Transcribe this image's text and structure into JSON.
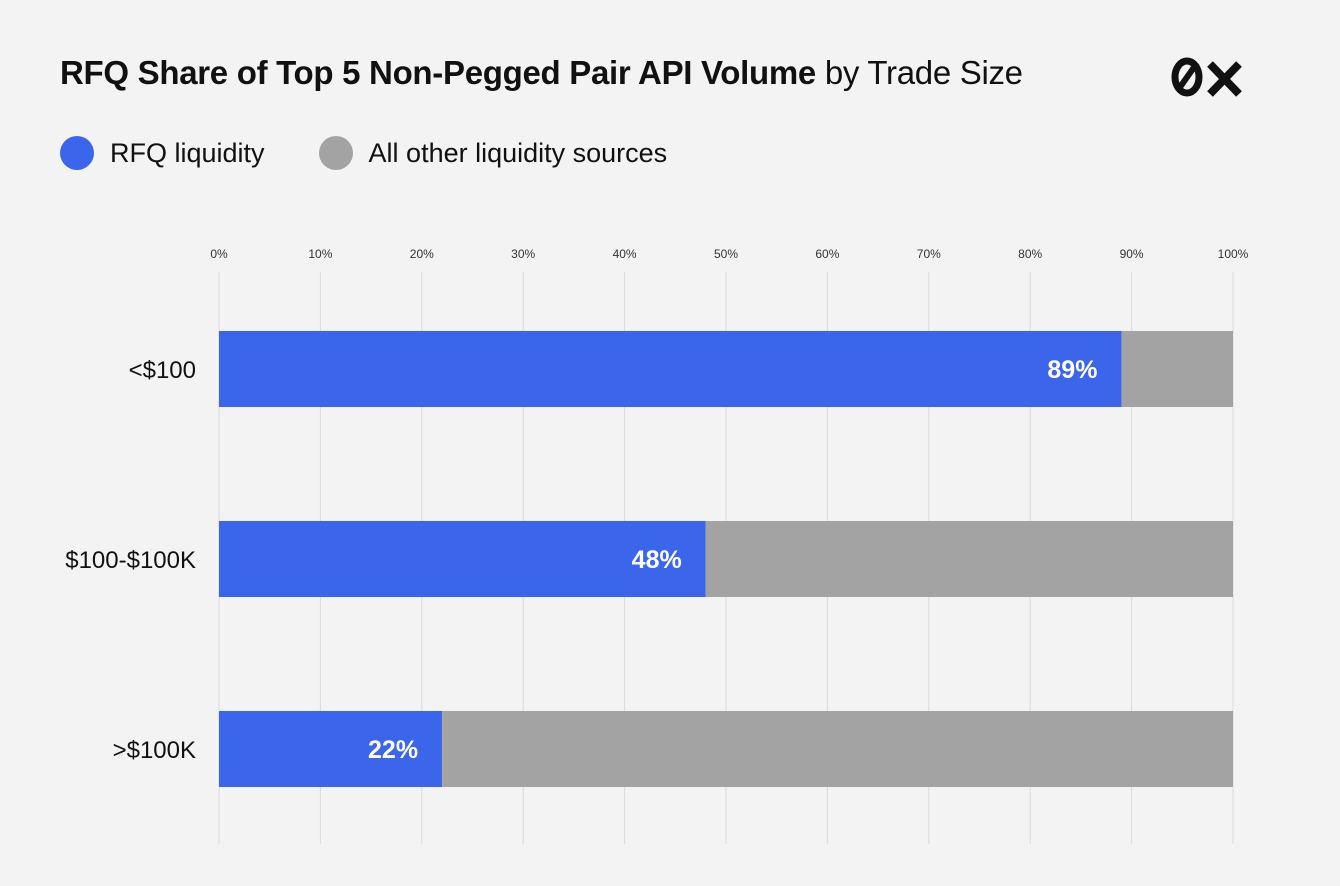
{
  "title_bold": "RFQ Share of Top 5 Non-Pegged Pair API Volume",
  "title_rest": "by Trade Size",
  "logo_text": "0x",
  "colors": {
    "rfq": "#3b66ec",
    "other": "#a3a3a3",
    "background": "#f3f3f3",
    "grid": "#d9d9d9"
  },
  "legend": [
    {
      "label": "RFQ liquidity",
      "color": "#3b66ec"
    },
    {
      "label": "All other liquidity sources",
      "color": "#a3a3a3"
    }
  ],
  "chart_data": {
    "type": "bar",
    "orientation": "horizontal",
    "stacked": true,
    "categories": [
      "<$100",
      "$100-$100K",
      ">$100K"
    ],
    "series": [
      {
        "name": "RFQ liquidity",
        "values": [
          89,
          48,
          22
        ]
      },
      {
        "name": "All other liquidity sources",
        "values": [
          11,
          52,
          78
        ]
      }
    ],
    "data_labels": [
      "89%",
      "48%",
      "22%"
    ],
    "x_ticks": [
      "0%",
      "10%",
      "20%",
      "30%",
      "40%",
      "50%",
      "60%",
      "70%",
      "80%",
      "90%",
      "100%"
    ],
    "xlim": [
      0,
      100
    ],
    "grid": true,
    "xaxis_position": "top",
    "legend_position": "top-left"
  }
}
